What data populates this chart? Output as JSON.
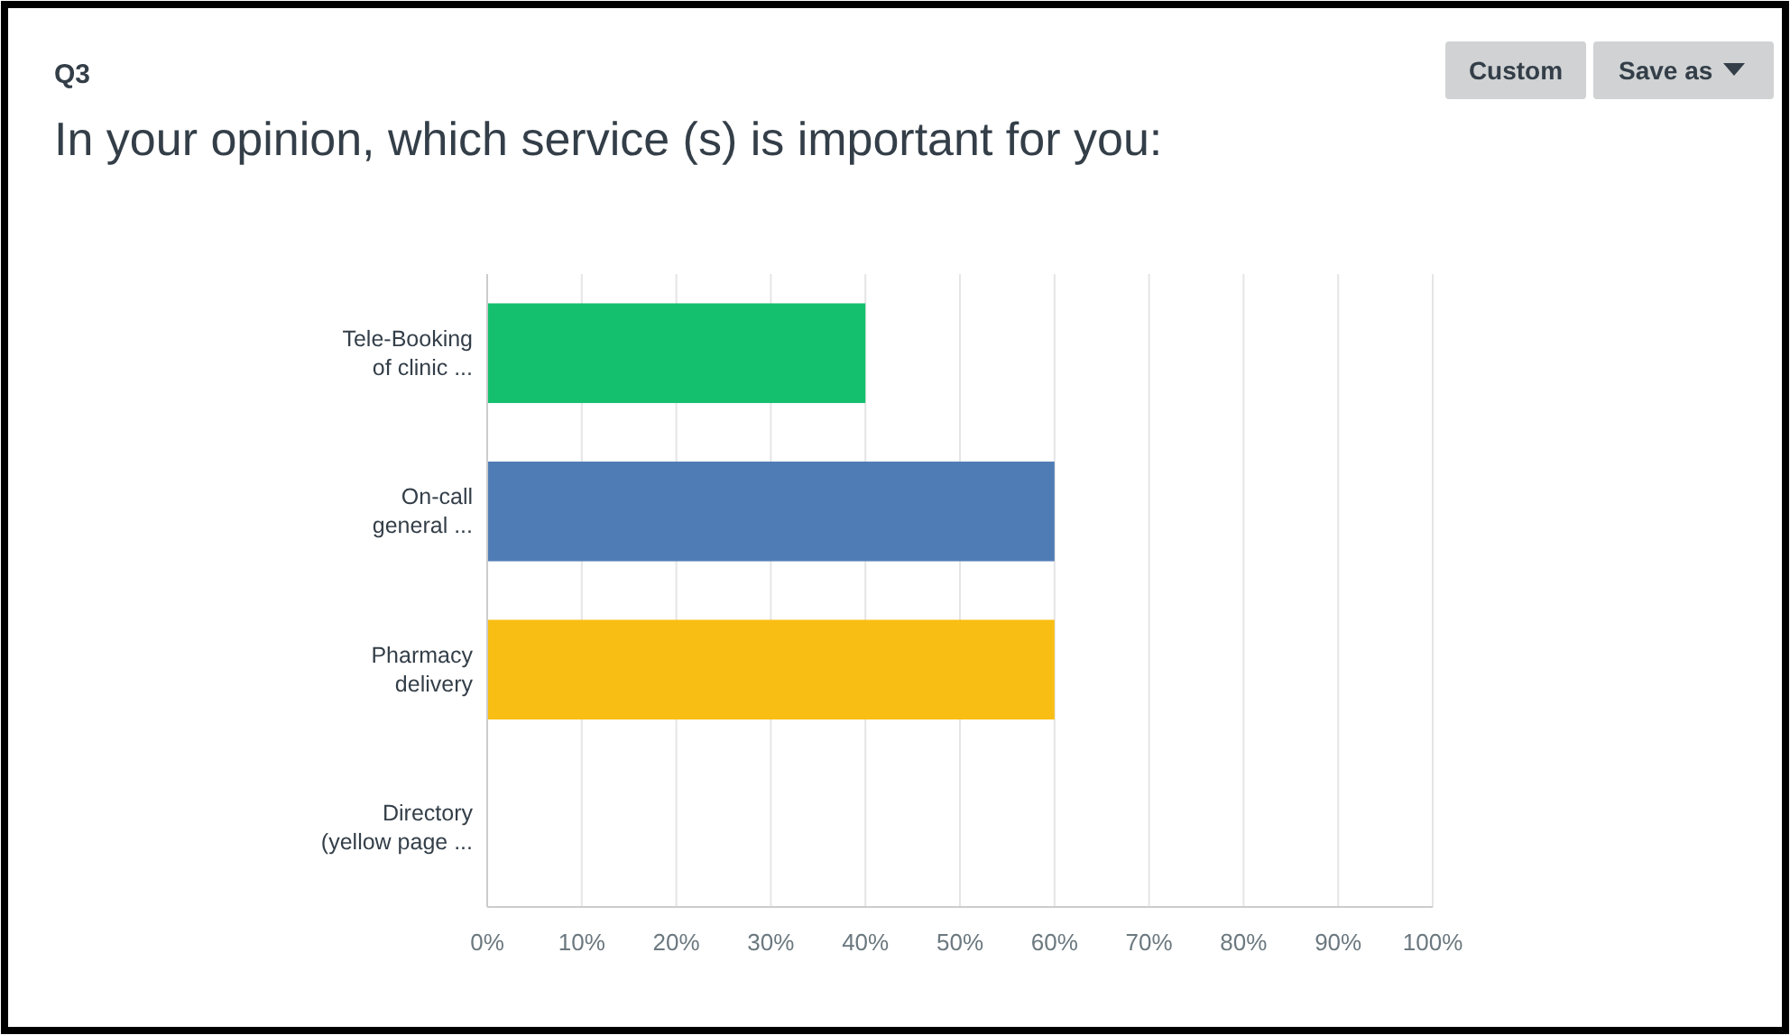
{
  "chart_data": {
    "type": "bar",
    "orientation": "horizontal",
    "title": "In your opinion, which service (s) is important for you:",
    "annotations": [
      "Q3",
      "Custom",
      "Save as"
    ],
    "categories": [
      "Tele-Booking of clinic ...",
      "On-call general ...",
      "Pharmacy delivery",
      "Directory (yellow page ..."
    ],
    "values": [
      40,
      60,
      60,
      0
    ],
    "colors": [
      "#14c06e",
      "#507cb6",
      "#f9be14",
      "#a06cc8"
    ],
    "xlim": [
      0,
      100
    ],
    "xticks": [
      {
        "value": 0,
        "label": "0%"
      },
      {
        "value": 10,
        "label": "10%"
      },
      {
        "value": 20,
        "label": "20%"
      },
      {
        "value": 30,
        "label": "30%"
      },
      {
        "value": 40,
        "label": "40%"
      },
      {
        "value": 50,
        "label": "50%"
      },
      {
        "value": 60,
        "label": "60%"
      },
      {
        "value": 70,
        "label": "70%"
      },
      {
        "value": 80,
        "label": "80%"
      },
      {
        "value": 90,
        "label": "90%"
      },
      {
        "value": 100,
        "label": "100%"
      }
    ],
    "grid": "x"
  }
}
